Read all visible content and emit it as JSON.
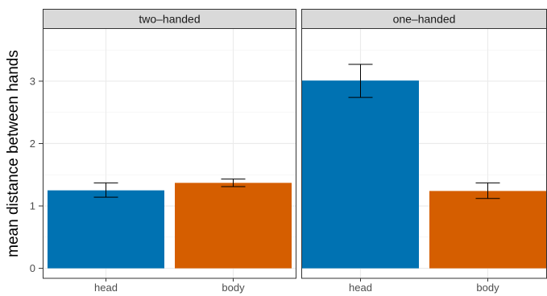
{
  "chart_data": {
    "type": "bar",
    "ylabel": "mean distance between hands",
    "xlabel": "",
    "ylim": [
      -0.16,
      3.85
    ],
    "yticks": [
      0,
      1,
      2,
      3
    ],
    "grid": true,
    "categories": [
      "head",
      "body"
    ],
    "panels": [
      {
        "title": "two–handed",
        "bars": [
          {
            "category": "head",
            "value": 1.25,
            "err_low": 1.14,
            "err_high": 1.37,
            "color": "#0072b2"
          },
          {
            "category": "body",
            "value": 1.37,
            "err_low": 1.31,
            "err_high": 1.43,
            "color": "#d55e00"
          }
        ]
      },
      {
        "title": "one–handed",
        "bars": [
          {
            "category": "head",
            "value": 3.01,
            "err_low": 2.74,
            "err_high": 3.27,
            "color": "#0072b2"
          },
          {
            "category": "body",
            "value": 1.24,
            "err_low": 1.12,
            "err_high": 1.37,
            "color": "#d55e00"
          }
        ]
      }
    ]
  }
}
